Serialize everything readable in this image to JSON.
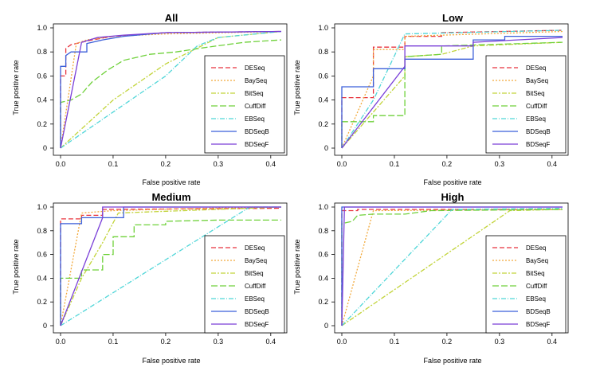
{
  "colors": {
    "DESeq": "#e8323c",
    "BaySeq": "#f2a93b",
    "BitSeq": "#c2d43a",
    "CuffDiff": "#6fd13a",
    "EBSeq": "#4fd6d8",
    "BDSeqB": "#3b5fd9",
    "BDSeqF": "#7a3fd8"
  },
  "chart_data": [
    {
      "type": "line",
      "title": "All",
      "xlabel": "False positive rate",
      "ylabel": "True positive rate",
      "xlim": [
        0,
        0.42
      ],
      "ylim": [
        0,
        1
      ],
      "xticks": [
        "0.0",
        "0.1",
        "0.2",
        "0.3",
        "0.4"
      ],
      "yticks": [
        "0",
        "0.2",
        "0.4",
        "0.6",
        "0.8",
        "1.0"
      ],
      "legend_position": "bottom-right",
      "series": [
        {
          "name": "DESeq",
          "points": [
            [
              0,
              0
            ],
            [
              0,
              0.6
            ],
            [
              0.01,
              0.6
            ],
            [
              0.01,
              0.83
            ],
            [
              0.02,
              0.86
            ],
            [
              0.06,
              0.9
            ],
            [
              0.1,
              0.93
            ],
            [
              0.2,
              0.96
            ],
            [
              0.42,
              0.97
            ]
          ]
        },
        {
          "name": "BaySeq",
          "points": [
            [
              0,
              0
            ],
            [
              0.03,
              0.87
            ],
            [
              0.05,
              0.9
            ],
            [
              0.1,
              0.93
            ],
            [
              0.2,
              0.95
            ],
            [
              0.42,
              0.97
            ]
          ]
        },
        {
          "name": "BitSeq",
          "points": [
            [
              0,
              0
            ],
            [
              0.1,
              0.4
            ],
            [
              0.2,
              0.7
            ],
            [
              0.3,
              0.92
            ],
            [
              0.42,
              0.97
            ]
          ]
        },
        {
          "name": "CuffDiff",
          "points": [
            [
              0,
              0
            ],
            [
              0,
              0.38
            ],
            [
              0.02,
              0.4
            ],
            [
              0.04,
              0.45
            ],
            [
              0.06,
              0.55
            ],
            [
              0.09,
              0.65
            ],
            [
              0.12,
              0.73
            ],
            [
              0.17,
              0.78
            ],
            [
              0.22,
              0.8
            ],
            [
              0.28,
              0.84
            ],
            [
              0.35,
              0.88
            ],
            [
              0.42,
              0.9
            ]
          ]
        },
        {
          "name": "EBSeq",
          "points": [
            [
              0,
              0
            ],
            [
              0.1,
              0.3
            ],
            [
              0.2,
              0.6
            ],
            [
              0.26,
              0.85
            ],
            [
              0.3,
              0.92
            ],
            [
              0.42,
              0.97
            ]
          ]
        },
        {
          "name": "BDSeqB",
          "points": [
            [
              0,
              0
            ],
            [
              0,
              0.68
            ],
            [
              0.01,
              0.68
            ],
            [
              0.01,
              0.77
            ],
            [
              0.02,
              0.8
            ],
            [
              0.05,
              0.8
            ],
            [
              0.05,
              0.87
            ],
            [
              0.08,
              0.9
            ],
            [
              0.12,
              0.93
            ],
            [
              0.2,
              0.96
            ],
            [
              0.42,
              0.97
            ]
          ]
        },
        {
          "name": "BDSeqF",
          "points": [
            [
              0,
              0
            ],
            [
              0.04,
              0.88
            ],
            [
              0.07,
              0.92
            ],
            [
              0.12,
              0.94
            ],
            [
              0.2,
              0.96
            ],
            [
              0.42,
              0.97
            ]
          ]
        }
      ]
    },
    {
      "type": "line",
      "title": "Low",
      "xlabel": "False positive rate",
      "ylabel": "True positive rate",
      "xlim": [
        0,
        0.42
      ],
      "ylim": [
        0,
        1
      ],
      "xticks": [
        "0.0",
        "0.1",
        "0.2",
        "0.3",
        "0.4"
      ],
      "yticks": [
        "0",
        "0.2",
        "0.4",
        "0.6",
        "0.8",
        "1.0"
      ],
      "legend_position": "bottom-right",
      "series": [
        {
          "name": "DESeq",
          "points": [
            [
              0,
              0
            ],
            [
              0,
              0.42
            ],
            [
              0.06,
              0.42
            ],
            [
              0.06,
              0.84
            ],
            [
              0.12,
              0.84
            ],
            [
              0.12,
              0.93
            ],
            [
              0.19,
              0.93
            ],
            [
              0.19,
              0.96
            ],
            [
              0.42,
              0.98
            ]
          ]
        },
        {
          "name": "BaySeq",
          "points": [
            [
              0,
              0
            ],
            [
              0.06,
              0.6
            ],
            [
              0.06,
              0.82
            ],
            [
              0.12,
              0.82
            ],
            [
              0.12,
              0.93
            ],
            [
              0.42,
              0.97
            ]
          ]
        },
        {
          "name": "BitSeq",
          "points": [
            [
              0,
              0
            ],
            [
              0.06,
              0.3
            ],
            [
              0.12,
              0.6
            ],
            [
              0.12,
              0.76
            ],
            [
              0.19,
              0.78
            ],
            [
              0.25,
              0.85
            ],
            [
              0.42,
              0.88
            ]
          ]
        },
        {
          "name": "CuffDiff",
          "points": [
            [
              0,
              0
            ],
            [
              0,
              0.22
            ],
            [
              0.06,
              0.22
            ],
            [
              0.06,
              0.27
            ],
            [
              0.12,
              0.27
            ],
            [
              0.12,
              0.76
            ],
            [
              0.19,
              0.78
            ],
            [
              0.19,
              0.85
            ],
            [
              0.42,
              0.88
            ]
          ]
        },
        {
          "name": "EBSeq",
          "points": [
            [
              0,
              0
            ],
            [
              0.06,
              0.4
            ],
            [
              0.12,
              0.95
            ],
            [
              0.42,
              0.98
            ]
          ]
        },
        {
          "name": "BDSeqB",
          "points": [
            [
              0,
              0
            ],
            [
              0,
              0.51
            ],
            [
              0.06,
              0.51
            ],
            [
              0.06,
              0.66
            ],
            [
              0.12,
              0.66
            ],
            [
              0.12,
              0.74
            ],
            [
              0.25,
              0.74
            ],
            [
              0.25,
              0.9
            ],
            [
              0.31,
              0.9
            ],
            [
              0.31,
              0.93
            ],
            [
              0.42,
              0.93
            ]
          ]
        },
        {
          "name": "BDSeqF",
          "points": [
            [
              0,
              0
            ],
            [
              0.12,
              0.68
            ],
            [
              0.12,
              0.85
            ],
            [
              0.25,
              0.85
            ],
            [
              0.25,
              0.88
            ],
            [
              0.42,
              0.92
            ]
          ]
        }
      ]
    },
    {
      "type": "line",
      "title": "Medium",
      "xlabel": "False positive rate",
      "ylabel": "True positive rate",
      "xlim": [
        0,
        0.42
      ],
      "ylim": [
        0,
        1
      ],
      "xticks": [
        "0.0",
        "0.1",
        "0.2",
        "0.3",
        "0.4"
      ],
      "yticks": [
        "0",
        "0.2",
        "0.4",
        "0.6",
        "0.8",
        "1.0"
      ],
      "legend_position": "bottom-right",
      "series": [
        {
          "name": "DESeq",
          "points": [
            [
              0,
              0
            ],
            [
              0,
              0.9
            ],
            [
              0.04,
              0.9
            ],
            [
              0.04,
              0.93
            ],
            [
              0.08,
              0.93
            ],
            [
              0.08,
              0.98
            ],
            [
              0.42,
              0.99
            ]
          ]
        },
        {
          "name": "BaySeq",
          "points": [
            [
              0,
              0
            ],
            [
              0.04,
              0.95
            ],
            [
              0.1,
              0.97
            ],
            [
              0.27,
              0.99
            ],
            [
              0.42,
              1.0
            ]
          ]
        },
        {
          "name": "BitSeq",
          "points": [
            [
              0,
              0
            ],
            [
              0.04,
              0.4
            ],
            [
              0.08,
              0.7
            ],
            [
              0.11,
              0.95
            ],
            [
              0.42,
              1.0
            ]
          ]
        },
        {
          "name": "CuffDiff",
          "points": [
            [
              0,
              0
            ],
            [
              0,
              0.4
            ],
            [
              0.04,
              0.4
            ],
            [
              0.04,
              0.47
            ],
            [
              0.08,
              0.47
            ],
            [
              0.08,
              0.6
            ],
            [
              0.1,
              0.6
            ],
            [
              0.1,
              0.75
            ],
            [
              0.14,
              0.75
            ],
            [
              0.14,
              0.85
            ],
            [
              0.2,
              0.85
            ],
            [
              0.2,
              0.88
            ],
            [
              0.3,
              0.89
            ],
            [
              0.42,
              0.89
            ]
          ]
        },
        {
          "name": "EBSeq",
          "points": [
            [
              0,
              0
            ],
            [
              0.36,
              1.0
            ],
            [
              0.42,
              1.0
            ]
          ]
        },
        {
          "name": "BDSeqB",
          "points": [
            [
              0,
              0
            ],
            [
              0,
              0.86
            ],
            [
              0.04,
              0.86
            ],
            [
              0.04,
              0.91
            ],
            [
              0.12,
              0.91
            ],
            [
              0.12,
              1.0
            ],
            [
              0.42,
              1.0
            ]
          ]
        },
        {
          "name": "BDSeqF",
          "points": [
            [
              0,
              0
            ],
            [
              0.08,
              0.91
            ],
            [
              0.08,
              1.0
            ],
            [
              0.42,
              1.0
            ]
          ]
        }
      ]
    },
    {
      "type": "line",
      "title": "High",
      "xlabel": "False positive rate",
      "ylabel": "True positive rate",
      "xlim": [
        0,
        0.42
      ],
      "ylim": [
        0,
        1
      ],
      "xticks": [
        "0.0",
        "0.1",
        "0.2",
        "0.3",
        "0.4"
      ],
      "yticks": [
        "0",
        "0.2",
        "0.4",
        "0.6",
        "0.8",
        "1.0"
      ],
      "legend_position": "bottom-right",
      "series": [
        {
          "name": "DESeq",
          "points": [
            [
              0,
              0
            ],
            [
              0,
              0.97
            ],
            [
              0.03,
              0.97
            ],
            [
              0.03,
              0.98
            ],
            [
              0.42,
              0.98
            ]
          ]
        },
        {
          "name": "BaySeq",
          "points": [
            [
              0,
              0
            ],
            [
              0.06,
              0.97
            ],
            [
              0.42,
              0.98
            ]
          ]
        },
        {
          "name": "BitSeq",
          "points": [
            [
              0,
              0
            ],
            [
              0.32,
              0.97
            ],
            [
              0.42,
              0.98
            ]
          ]
        },
        {
          "name": "CuffDiff",
          "points": [
            [
              0,
              0
            ],
            [
              0,
              0.86
            ],
            [
              0.02,
              0.88
            ],
            [
              0.03,
              0.93
            ],
            [
              0.06,
              0.94
            ],
            [
              0.12,
              0.94
            ],
            [
              0.17,
              0.97
            ],
            [
              0.42,
              0.98
            ]
          ]
        },
        {
          "name": "EBSeq",
          "points": [
            [
              0,
              0
            ],
            [
              0.21,
              0.98
            ],
            [
              0.42,
              0.99
            ]
          ]
        },
        {
          "name": "BDSeqB",
          "points": [
            [
              0,
              0
            ],
            [
              0,
              1.0
            ],
            [
              0.42,
              1.0
            ]
          ]
        },
        {
          "name": "BDSeqF",
          "points": [
            [
              0,
              0
            ],
            [
              0.005,
              1.0
            ],
            [
              0.42,
              1.0
            ]
          ]
        }
      ]
    }
  ]
}
